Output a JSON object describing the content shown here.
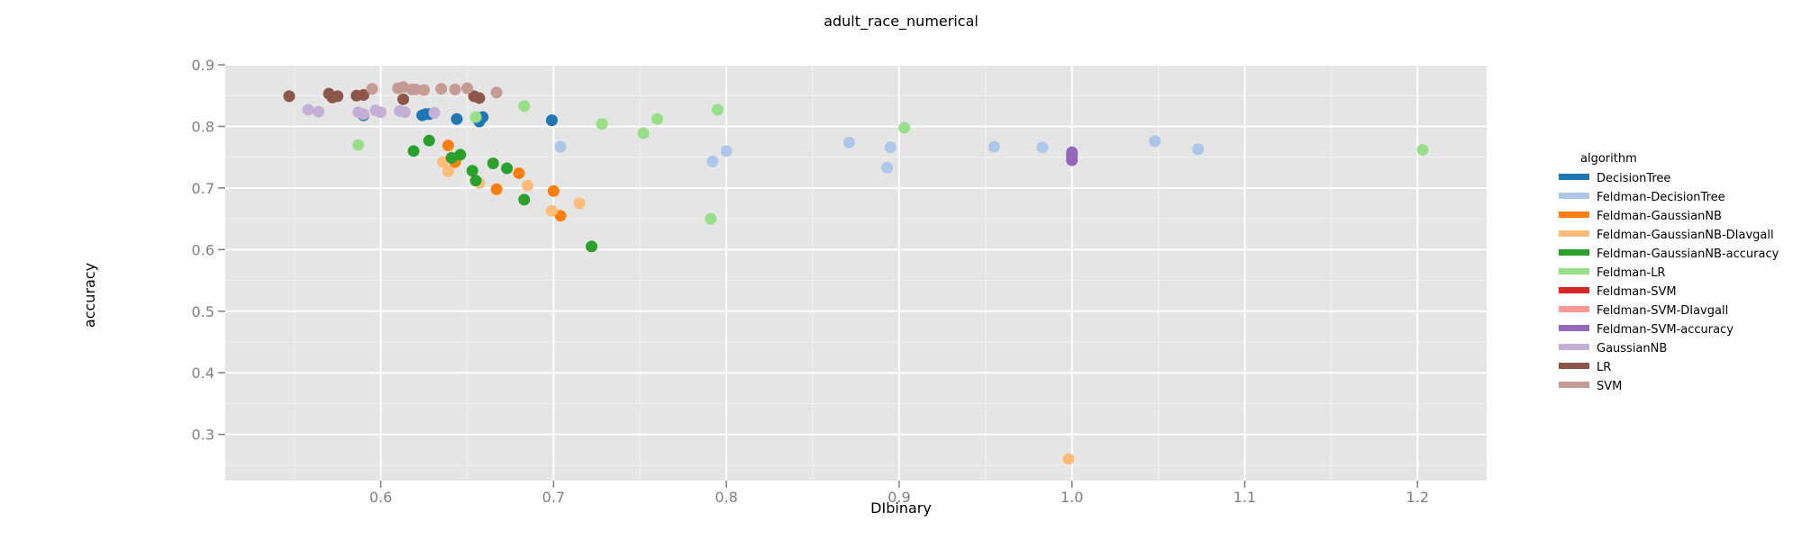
{
  "chart_data": {
    "type": "scatter",
    "title": "adult_race_numerical",
    "xlabel": "DIbinary",
    "ylabel": "accuracy",
    "xlim": [
      0.51,
      1.24
    ],
    "ylim": [
      0.225,
      0.9
    ],
    "x_ticks": [
      "0.6",
      "0.7",
      "0.8",
      "0.9",
      "1.0",
      "1.1",
      "1.2"
    ],
    "y_ticks": [
      "0.3",
      "0.4",
      "0.5",
      "0.6",
      "0.7",
      "0.8",
      "0.9"
    ],
    "grid": true,
    "legend_title": "algorithm",
    "legend_position": "right",
    "series": [
      {
        "name": "DecisionTree",
        "color": "#1f77b4",
        "points": [
          [
            0.59,
            0.818
          ],
          [
            0.624,
            0.818
          ],
          [
            0.626,
            0.82
          ],
          [
            0.628,
            0.82
          ],
          [
            0.644,
            0.812
          ],
          [
            0.657,
            0.808
          ],
          [
            0.659,
            0.815
          ],
          [
            0.699,
            0.81
          ]
        ]
      },
      {
        "name": "Feldman-DecisionTree",
        "color": "#aec7e8",
        "points": [
          [
            0.704,
            0.767
          ],
          [
            0.792,
            0.743
          ],
          [
            0.8,
            0.76
          ],
          [
            0.871,
            0.774
          ],
          [
            0.893,
            0.733
          ],
          [
            0.895,
            0.766
          ],
          [
            0.955,
            0.767
          ],
          [
            0.983,
            0.766
          ],
          [
            1.048,
            0.776
          ],
          [
            1.073,
            0.763
          ]
        ]
      },
      {
        "name": "Feldman-GaussianNB",
        "color": "#ff7f0e",
        "points": [
          [
            0.639,
            0.769
          ],
          [
            0.643,
            0.742
          ],
          [
            0.667,
            0.698
          ],
          [
            0.68,
            0.724
          ],
          [
            0.7,
            0.695
          ],
          [
            0.704,
            0.655
          ]
        ]
      },
      {
        "name": "Feldman-GaussianNB-DIavgall",
        "color": "#ffbb78",
        "points": [
          [
            0.636,
            0.742
          ],
          [
            0.639,
            0.727
          ],
          [
            0.657,
            0.708
          ],
          [
            0.685,
            0.704
          ],
          [
            0.699,
            0.663
          ],
          [
            0.715,
            0.675
          ],
          [
            0.998,
            0.26
          ]
        ]
      },
      {
        "name": "Feldman-GaussianNB-accuracy",
        "color": "#2ca02c",
        "points": [
          [
            0.619,
            0.76
          ],
          [
            0.628,
            0.777
          ],
          [
            0.641,
            0.749
          ],
          [
            0.646,
            0.754
          ],
          [
            0.653,
            0.728
          ],
          [
            0.655,
            0.712
          ],
          [
            0.665,
            0.74
          ],
          [
            0.673,
            0.732
          ],
          [
            0.683,
            0.681
          ],
          [
            0.722,
            0.605
          ]
        ]
      },
      {
        "name": "Feldman-LR",
        "color": "#98df8a",
        "points": [
          [
            0.587,
            0.77
          ],
          [
            0.655,
            0.815
          ],
          [
            0.683,
            0.833
          ],
          [
            0.728,
            0.804
          ],
          [
            0.752,
            0.789
          ],
          [
            0.76,
            0.812
          ],
          [
            0.791,
            0.65
          ],
          [
            0.795,
            0.827
          ],
          [
            0.903,
            0.798
          ],
          [
            1.203,
            0.762
          ]
        ]
      },
      {
        "name": "Feldman-SVM",
        "color": "#d62728",
        "points": []
      },
      {
        "name": "Feldman-SVM-DIavgall",
        "color": "#ff9896",
        "points": []
      },
      {
        "name": "Feldman-SVM-accuracy",
        "color": "#9467bd",
        "points": [
          [
            1.0,
            0.745
          ],
          [
            1.0,
            0.75
          ],
          [
            1.0,
            0.755
          ],
          [
            1.0,
            0.758
          ]
        ]
      },
      {
        "name": "GaussianNB",
        "color": "#c5b0d5",
        "points": [
          [
            0.558,
            0.827
          ],
          [
            0.564,
            0.824
          ],
          [
            0.587,
            0.823
          ],
          [
            0.59,
            0.82
          ],
          [
            0.597,
            0.826
          ],
          [
            0.6,
            0.823
          ],
          [
            0.611,
            0.825
          ],
          [
            0.614,
            0.823
          ],
          [
            0.631,
            0.822
          ]
        ]
      },
      {
        "name": "LR",
        "color": "#8c564b",
        "points": [
          [
            0.547,
            0.849
          ],
          [
            0.57,
            0.853
          ],
          [
            0.572,
            0.847
          ],
          [
            0.575,
            0.849
          ],
          [
            0.586,
            0.85
          ],
          [
            0.59,
            0.851
          ],
          [
            0.613,
            0.844
          ],
          [
            0.654,
            0.849
          ],
          [
            0.657,
            0.846
          ]
        ]
      },
      {
        "name": "SVM",
        "color": "#c49c94",
        "points": [
          [
            0.595,
            0.861
          ],
          [
            0.61,
            0.862
          ],
          [
            0.613,
            0.864
          ],
          [
            0.618,
            0.86
          ],
          [
            0.62,
            0.86
          ],
          [
            0.625,
            0.859
          ],
          [
            0.635,
            0.861
          ],
          [
            0.643,
            0.86
          ],
          [
            0.65,
            0.862
          ],
          [
            0.667,
            0.855
          ]
        ]
      }
    ]
  }
}
